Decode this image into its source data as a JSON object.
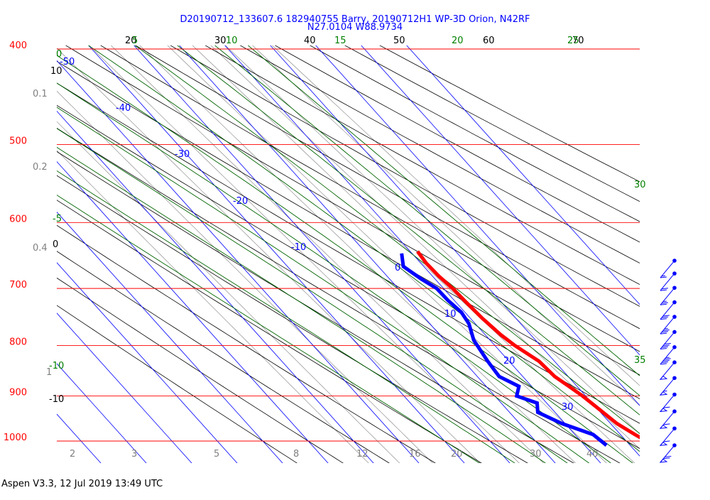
{
  "title_line1": "D20190712_133607.6 182940755 Barry, 20190712H1 WP-3D Orion, N42RF",
  "title_line2": "N27.0104 W88.9734",
  "footer": "Aspen V3.3, 12 Jul 2019  13:49 UTC",
  "colors": {
    "isobar": "#ff0000",
    "isotherm": "#0000ff",
    "dry_adiabat": "#000000",
    "moist_adiabat": "#006400",
    "mixing_ratio": "#808080",
    "temperature": "#ff0000",
    "dewpoint": "#0000ff",
    "wind": "#0000ff"
  },
  "chart_data": {
    "type": "skew-t",
    "pressure_levels": [
      400,
      500,
      600,
      700,
      800,
      900,
      1000
    ],
    "isotherm_labels": [
      -50,
      -40,
      -30,
      -20,
      -10,
      0,
      10,
      20,
      30
    ],
    "dry_adiabat_labels": [
      20,
      30,
      40,
      50,
      60,
      70,
      10,
      0,
      -10
    ],
    "moist_adiabat_labels": [
      0,
      5,
      10,
      15,
      20,
      25,
      30,
      35,
      -5,
      -10
    ],
    "mixing_ratio_labels": [
      "0.1",
      "0.2",
      "0.4",
      "1",
      "2",
      "3",
      "5",
      "8",
      "12",
      "16",
      "20",
      "30",
      "40"
    ],
    "temperature_profile": [
      {
        "p": 642,
        "t": 11.6
      },
      {
        "p": 660,
        "t": 11.2
      },
      {
        "p": 680,
        "t": 11.4
      },
      {
        "p": 700,
        "t": 12.0
      },
      {
        "p": 720,
        "t": 12.2
      },
      {
        "p": 750,
        "t": 12.6
      },
      {
        "p": 780,
        "t": 13.4
      },
      {
        "p": 800,
        "t": 14.4
      },
      {
        "p": 830,
        "t": 16.6
      },
      {
        "p": 860,
        "t": 17.0
      },
      {
        "p": 880,
        "t": 18.2
      },
      {
        "p": 900,
        "t": 19.3
      },
      {
        "p": 930,
        "t": 20.4
      },
      {
        "p": 960,
        "t": 21.4
      },
      {
        "p": 985,
        "t": 23.2
      },
      {
        "p": 1010,
        "t": 25.2
      }
    ],
    "dewpoint_profile": [
      {
        "p": 645,
        "t": 7.7
      },
      {
        "p": 665,
        "t": 5.5
      },
      {
        "p": 685,
        "t": 7.0
      },
      {
        "p": 700,
        "t": 8.5
      },
      {
        "p": 720,
        "t": 8.6
      },
      {
        "p": 740,
        "t": 9.2
      },
      {
        "p": 760,
        "t": 8.6
      },
      {
        "p": 790,
        "t": 6.4
      },
      {
        "p": 830,
        "t": 5.3
      },
      {
        "p": 860,
        "t": 4.8
      },
      {
        "p": 880,
        "t": 7.2
      },
      {
        "p": 900,
        "t": 4.8
      },
      {
        "p": 915,
        "t": 7.9
      },
      {
        "p": 935,
        "t": 6.2
      },
      {
        "p": 960,
        "t": 9.3
      },
      {
        "p": 985,
        "t": 14.0
      },
      {
        "p": 1010,
        "t": 14.8
      }
    ],
    "wind_barbs": [
      {
        "p": 656,
        "speed_kt": 15
      },
      {
        "p": 676,
        "speed_kt": 20
      },
      {
        "p": 699,
        "speed_kt": 25
      },
      {
        "p": 723,
        "speed_kt": 30
      },
      {
        "p": 748,
        "speed_kt": 35
      },
      {
        "p": 775,
        "speed_kt": 40
      },
      {
        "p": 803,
        "speed_kt": 45
      },
      {
        "p": 832,
        "speed_kt": 50
      },
      {
        "p": 863,
        "speed_kt": 55
      },
      {
        "p": 897,
        "speed_kt": 60
      },
      {
        "p": 933,
        "speed_kt": 60
      },
      {
        "p": 971,
        "speed_kt": 60
      },
      {
        "p": 1010,
        "speed_kt": 70
      }
    ]
  }
}
